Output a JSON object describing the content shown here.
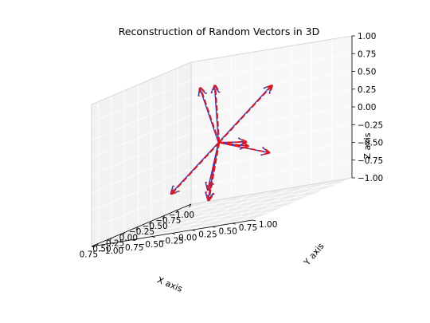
{
  "chart_data": {
    "type": "quiver3d",
    "title": "Reconstruction of Random Vectors in 3D",
    "xlabel": "X axis",
    "ylabel": "Y axis",
    "zlabel": "Z axis",
    "xlim": [
      -1.0,
      0.875
    ],
    "ylim": [
      -1.0,
      1.0
    ],
    "zlim": [
      -1.0,
      1.0
    ],
    "xticks": [
      "−1.00",
      "−0.75",
      "−0.50",
      "−0.25",
      "0.00",
      "0.25",
      "0.50",
      "0.75"
    ],
    "yticks": [
      "−1.00",
      "−0.75",
      "−0.50",
      "−0.25",
      "0.00",
      "0.25",
      "0.50",
      "0.75",
      "1.00"
    ],
    "zticks": [
      "−1.00",
      "−0.75",
      "−0.50",
      "−0.25",
      "0.00",
      "0.25",
      "0.50",
      "0.75",
      "1.00"
    ],
    "grid": true,
    "origin": [
      0,
      0,
      0
    ],
    "vectors": [
      [
        -0.7,
        0.2,
        0.55
      ],
      [
        -0.75,
        -0.15,
        -0.2
      ],
      [
        0.15,
        0.05,
        0.85
      ],
      [
        -0.1,
        -0.3,
        0.8
      ],
      [
        -0.25,
        -0.3,
        -0.7
      ],
      [
        0.35,
        0.1,
        -0.72
      ],
      [
        0.5,
        0.2,
        -0.7
      ],
      [
        0.35,
        0.6,
        -0.05
      ],
      [
        -0.2,
        0.5,
        -0.3
      ],
      [
        0.6,
        -0.2,
        -0.5
      ]
    ],
    "series": [
      {
        "name": "",
        "color": "#1f3fbf",
        "linestyle": "solid"
      },
      {
        "name": "",
        "color": "#e8141c",
        "linestyle": "dashed"
      }
    ]
  }
}
